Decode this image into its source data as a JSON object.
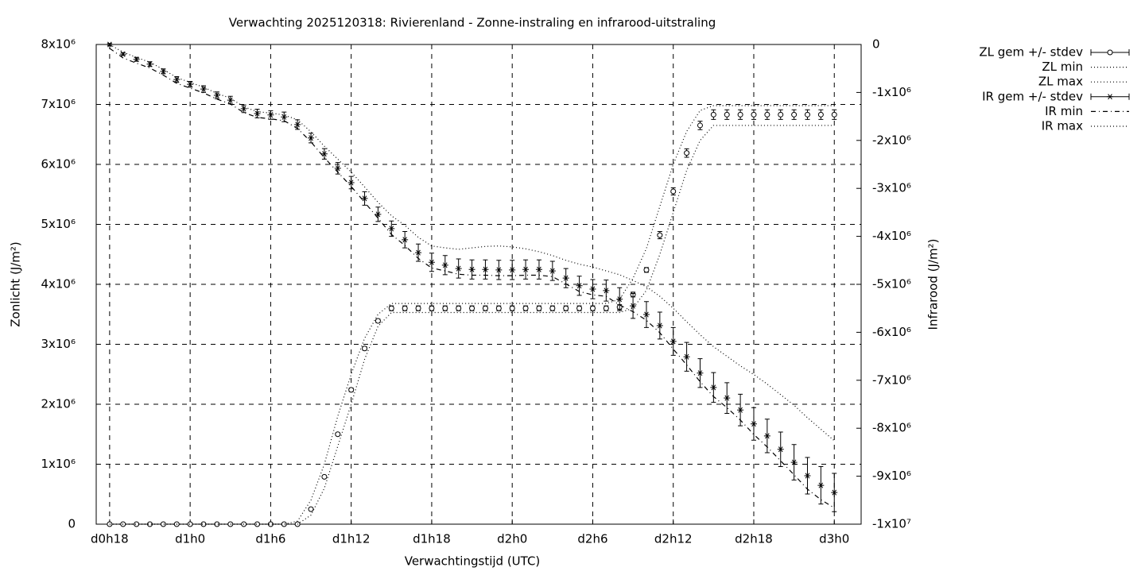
{
  "chart_data": {
    "type": "errorline",
    "title": "Verwachting 2025120318: Rivierenland - Zonne-instraling en infrarood-uitstraling",
    "x_label": "Verwachtingstijd (UTC)",
    "y_label": "Zonlicht (J/m²)",
    "y2_label": "Infrarood (J/m²)",
    "x": [
      0,
      1,
      2,
      3,
      4,
      5,
      6,
      7,
      8,
      9,
      10,
      11,
      12,
      13,
      14,
      15,
      16,
      17,
      18,
      19,
      20,
      21,
      22,
      23,
      24,
      25,
      26,
      27,
      28,
      29,
      30,
      31,
      32,
      33,
      34,
      35,
      36,
      37,
      38,
      39,
      40,
      41,
      42,
      43,
      44,
      45,
      46,
      47,
      48,
      49,
      50,
      51,
      52,
      53,
      54
    ],
    "xlim": [
      -1,
      56
    ],
    "xticks": [
      {
        "value": 0,
        "label": "d0h18"
      },
      {
        "value": 6,
        "label": "d1h0"
      },
      {
        "value": 12,
        "label": "d1h6"
      },
      {
        "value": 18,
        "label": "d1h12"
      },
      {
        "value": 24,
        "label": "d1h18"
      },
      {
        "value": 30,
        "label": "d2h0"
      },
      {
        "value": 36,
        "label": "d2h6"
      },
      {
        "value": 42,
        "label": "d2h12"
      },
      {
        "value": 48,
        "label": "d2h18"
      },
      {
        "value": 54,
        "label": "d3h0"
      }
    ],
    "ylim": [
      0,
      8000000
    ],
    "yticks": [
      0,
      {
        "value": 1000000,
        "label": "1x10⁶"
      },
      {
        "value": 2000000,
        "label": "2x10⁶"
      },
      {
        "value": 3000000,
        "label": "3x10⁶"
      },
      {
        "value": 4000000,
        "label": "4x10⁶"
      },
      {
        "value": 5000000,
        "label": "5x10⁶"
      },
      {
        "value": 6000000,
        "label": "6x10⁶"
      },
      {
        "value": 7000000,
        "label": "7x10⁶"
      },
      {
        "value": 8000000,
        "label": "8x10⁶"
      }
    ],
    "y2lim": [
      -10000000,
      0
    ],
    "y2ticks": [
      0,
      {
        "value": -1000000,
        "label": "-1x10⁶"
      },
      {
        "value": -2000000,
        "label": "-2x10⁶"
      },
      {
        "value": -3000000,
        "label": "-3x10⁶"
      },
      {
        "value": -4000000,
        "label": "-4x10⁶"
      },
      {
        "value": -5000000,
        "label": "-5x10⁶"
      },
      {
        "value": -6000000,
        "label": "-6x10⁶"
      },
      {
        "value": -7000000,
        "label": "-7x10⁶"
      },
      {
        "value": -8000000,
        "label": "-8x10⁶"
      },
      {
        "value": -9000000,
        "label": "-9x10⁶"
      },
      {
        "value": -10000000,
        "label": "-1x10⁷"
      }
    ],
    "grid": true,
    "legend": "outside-right",
    "series": [
      {
        "name": "ZL gem +/- stdev",
        "color": "#000000",
        "marker": "circle",
        "axis": "y",
        "values": [
          0,
          0,
          0,
          0,
          0,
          0,
          0,
          0,
          0,
          0,
          0,
          0,
          0,
          0,
          0,
          250000,
          790000,
          1500000,
          2240000,
          2930000,
          3390000,
          3600000,
          3600000,
          3600000,
          3600000,
          3600000,
          3600000,
          3600000,
          3600000,
          3600000,
          3600000,
          3600000,
          3600000,
          3600000,
          3600000,
          3600000,
          3600000,
          3600000,
          3620000,
          3830000,
          4240000,
          4820000,
          5550000,
          6190000,
          6650000,
          6830000,
          6830000,
          6830000,
          6830000,
          6830000,
          6830000,
          6830000,
          6830000,
          6830000,
          6830000
        ],
        "errors": [
          0,
          0,
          0,
          0,
          0,
          0,
          0,
          0,
          0,
          0,
          0,
          0,
          0,
          0,
          0,
          10000,
          20000,
          20000,
          30000,
          30000,
          30000,
          40000,
          40000,
          40000,
          40000,
          40000,
          40000,
          40000,
          40000,
          40000,
          40000,
          40000,
          40000,
          40000,
          40000,
          40000,
          40000,
          40000,
          40000,
          40000,
          40000,
          60000,
          60000,
          70000,
          70000,
          80000,
          80000,
          80000,
          80000,
          80000,
          80000,
          80000,
          80000,
          80000,
          80000
        ]
      },
      {
        "name": "ZL min",
        "color": "#000000",
        "line": "dotted",
        "axis": "y",
        "values": [
          0,
          0,
          0,
          0,
          0,
          0,
          0,
          0,
          0,
          0,
          0,
          0,
          0,
          0,
          0,
          150000,
          600000,
          1300000,
          2000000,
          2750000,
          3300000,
          3530000,
          3530000,
          3530000,
          3530000,
          3530000,
          3530000,
          3530000,
          3530000,
          3530000,
          3530000,
          3530000,
          3530000,
          3530000,
          3530000,
          3530000,
          3530000,
          3530000,
          3530000,
          3600000,
          3900000,
          4500000,
          5200000,
          5900000,
          6400000,
          6650000,
          6650000,
          6650000,
          6650000,
          6650000,
          6650000,
          6650000,
          6650000,
          6650000,
          6650000
        ]
      },
      {
        "name": "ZL max",
        "color": "#000000",
        "line": "dotted",
        "axis": "y",
        "values": [
          0,
          0,
          0,
          0,
          0,
          0,
          0,
          0,
          0,
          0,
          0,
          0,
          0,
          0,
          50000,
          400000,
          1000000,
          1800000,
          2500000,
          3100000,
          3500000,
          3680000,
          3680000,
          3680000,
          3680000,
          3680000,
          3680000,
          3680000,
          3680000,
          3680000,
          3680000,
          3680000,
          3680000,
          3680000,
          3680000,
          3680000,
          3680000,
          3680000,
          3750000,
          4100000,
          4600000,
          5300000,
          6000000,
          6550000,
          6900000,
          6980000,
          6980000,
          6980000,
          6980000,
          6980000,
          6980000,
          6980000,
          6980000,
          6980000,
          6980000
        ]
      },
      {
        "name": "IR gem +/- stdev",
        "color": "#000000",
        "marker": "star",
        "axis": "y2",
        "values": [
          0,
          -200000,
          -310000,
          -410000,
          -560000,
          -730000,
          -830000,
          -930000,
          -1060000,
          -1160000,
          -1340000,
          -1440000,
          -1470000,
          -1510000,
          -1670000,
          -1950000,
          -2280000,
          -2580000,
          -2880000,
          -3210000,
          -3540000,
          -3840000,
          -4070000,
          -4340000,
          -4540000,
          -4600000,
          -4670000,
          -4690000,
          -4690000,
          -4700000,
          -4700000,
          -4690000,
          -4690000,
          -4720000,
          -4870000,
          -5030000,
          -5100000,
          -5130000,
          -5310000,
          -5450000,
          -5630000,
          -5860000,
          -6190000,
          -6510000,
          -6850000,
          -7150000,
          -7370000,
          -7620000,
          -7910000,
          -8160000,
          -8440000,
          -8710000,
          -8990000,
          -9190000,
          -9340000
        ],
        "errors": [
          20000,
          30000,
          40000,
          50000,
          50000,
          60000,
          60000,
          70000,
          70000,
          80000,
          80000,
          90000,
          90000,
          100000,
          100000,
          100000,
          110000,
          120000,
          130000,
          140000,
          150000,
          160000,
          170000,
          180000,
          190000,
          200000,
          200000,
          200000,
          200000,
          200000,
          200000,
          200000,
          200000,
          200000,
          200000,
          200000,
          200000,
          220000,
          240000,
          260000,
          270000,
          280000,
          290000,
          300000,
          300000,
          310000,
          320000,
          330000,
          340000,
          350000,
          360000,
          370000,
          380000,
          390000,
          400000
        ]
      },
      {
        "name": "IR min",
        "color": "#000000",
        "line": "dashdot",
        "axis": "y2",
        "values": [
          -80000,
          -280000,
          -390000,
          -490000,
          -640000,
          -810000,
          -910000,
          -1010000,
          -1140000,
          -1240000,
          -1420000,
          -1520000,
          -1550000,
          -1590000,
          -1750000,
          -2030000,
          -2360000,
          -2660000,
          -2960000,
          -3290000,
          -3620000,
          -3960000,
          -4190000,
          -4460000,
          -4660000,
          -4720000,
          -4790000,
          -4810000,
          -4810000,
          -4820000,
          -4820000,
          -4810000,
          -4810000,
          -4840000,
          -4990000,
          -5150000,
          -5220000,
          -5250000,
          -5430000,
          -5570000,
          -5750000,
          -6010000,
          -6350000,
          -6680000,
          -7030000,
          -7340000,
          -7570000,
          -7830000,
          -8130000,
          -8390000,
          -8680000,
          -8970000,
          -9270000,
          -9490000,
          -9660000
        ]
      },
      {
        "name": "IR max",
        "color": "#000000",
        "line": "dotted",
        "axis": "y2",
        "values": [
          0,
          -160000,
          -270000,
          -370000,
          -520000,
          -690000,
          -790000,
          -890000,
          -1020000,
          -1120000,
          -1300000,
          -1400000,
          -1430000,
          -1470000,
          -1570000,
          -1820000,
          -2120000,
          -2390000,
          -2660000,
          -2970000,
          -3290000,
          -3570000,
          -3770000,
          -4020000,
          -4200000,
          -4240000,
          -4270000,
          -4240000,
          -4210000,
          -4200000,
          -4220000,
          -4260000,
          -4320000,
          -4400000,
          -4500000,
          -4580000,
          -4640000,
          -4720000,
          -4800000,
          -4920000,
          -5050000,
          -5250000,
          -5500000,
          -5780000,
          -6050000,
          -6300000,
          -6500000,
          -6700000,
          -6880000,
          -7080000,
          -7300000,
          -7520000,
          -7780000,
          -8020000,
          -8260000
        ]
      }
    ]
  }
}
